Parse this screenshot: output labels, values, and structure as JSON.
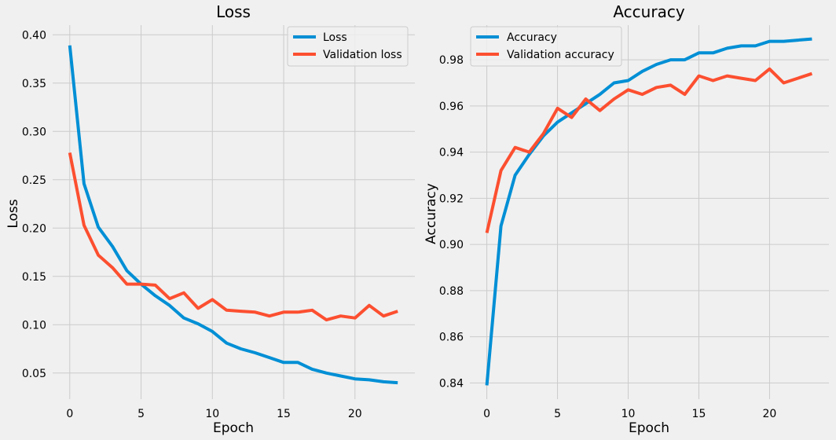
{
  "colors": {
    "background": "#f0f0f0",
    "grid": "#cbcbcb",
    "train": "#008fd5",
    "validation": "#fc4f30",
    "legend_bg": "#f0f0f0"
  },
  "chart_data": [
    {
      "type": "line",
      "title": "Loss",
      "xlabel": "Epoch",
      "ylabel": "Loss",
      "xlim": [
        -1.2,
        24.2
      ],
      "ylim": [
        0.023,
        0.41
      ],
      "xticks": [
        0,
        5,
        10,
        15,
        20
      ],
      "yticks": [
        0.05,
        0.1,
        0.15,
        0.2,
        0.25,
        0.3,
        0.35,
        0.4
      ],
      "ytick_labels": [
        "0.05",
        "0.10",
        "0.15",
        "0.20",
        "0.25",
        "0.30",
        "0.35",
        "0.40"
      ],
      "grid": true,
      "legend_position": "top-right",
      "x": [
        0,
        1,
        2,
        3,
        4,
        5,
        6,
        7,
        8,
        9,
        10,
        11,
        12,
        13,
        14,
        15,
        16,
        17,
        18,
        19,
        20,
        21,
        22,
        23
      ],
      "series": [
        {
          "name": "Loss",
          "color": "#008fd5",
          "values": [
            0.389,
            0.246,
            0.201,
            0.181,
            0.156,
            0.142,
            0.13,
            0.12,
            0.107,
            0.101,
            0.093,
            0.081,
            0.075,
            0.071,
            0.066,
            0.061,
            0.061,
            0.054,
            0.05,
            0.047,
            0.044,
            0.043,
            0.041,
            0.04
          ]
        },
        {
          "name": "Validation loss",
          "color": "#fc4f30",
          "values": [
            0.278,
            0.203,
            0.172,
            0.159,
            0.142,
            0.142,
            0.141,
            0.127,
            0.133,
            0.117,
            0.126,
            0.115,
            0.114,
            0.113,
            0.109,
            0.113,
            0.113,
            0.115,
            0.105,
            0.109,
            0.107,
            0.12,
            0.109,
            0.114
          ]
        }
      ]
    },
    {
      "type": "line",
      "title": "Accuracy",
      "xlabel": "Epoch",
      "ylabel": "Accuracy",
      "xlim": [
        -1.2,
        24.2
      ],
      "ylim": [
        0.833,
        0.995
      ],
      "xticks": [
        0,
        5,
        10,
        15,
        20
      ],
      "yticks": [
        0.84,
        0.86,
        0.88,
        0.9,
        0.92,
        0.94,
        0.96,
        0.98
      ],
      "ytick_labels": [
        "0.84",
        "0.86",
        "0.88",
        "0.90",
        "0.92",
        "0.94",
        "0.96",
        "0.98"
      ],
      "grid": true,
      "legend_position": "top-left",
      "x": [
        0,
        1,
        2,
        3,
        4,
        5,
        6,
        7,
        8,
        9,
        10,
        11,
        12,
        13,
        14,
        15,
        16,
        17,
        18,
        19,
        20,
        21,
        22,
        23
      ],
      "series": [
        {
          "name": "Accuracy",
          "color": "#008fd5",
          "values": [
            0.839,
            0.908,
            0.93,
            0.939,
            0.947,
            0.953,
            0.957,
            0.961,
            0.965,
            0.97,
            0.971,
            0.975,
            0.978,
            0.98,
            0.98,
            0.983,
            0.983,
            0.985,
            0.986,
            0.986,
            0.988,
            0.988,
            0.9885,
            0.989
          ]
        },
        {
          "name": "Validation accuracy",
          "color": "#fc4f30",
          "values": [
            0.905,
            0.932,
            0.942,
            0.94,
            0.948,
            0.959,
            0.955,
            0.963,
            0.958,
            0.963,
            0.967,
            0.965,
            0.968,
            0.969,
            0.965,
            0.973,
            0.971,
            0.973,
            0.972,
            0.971,
            0.976,
            0.97,
            0.972,
            0.974
          ]
        }
      ]
    }
  ]
}
